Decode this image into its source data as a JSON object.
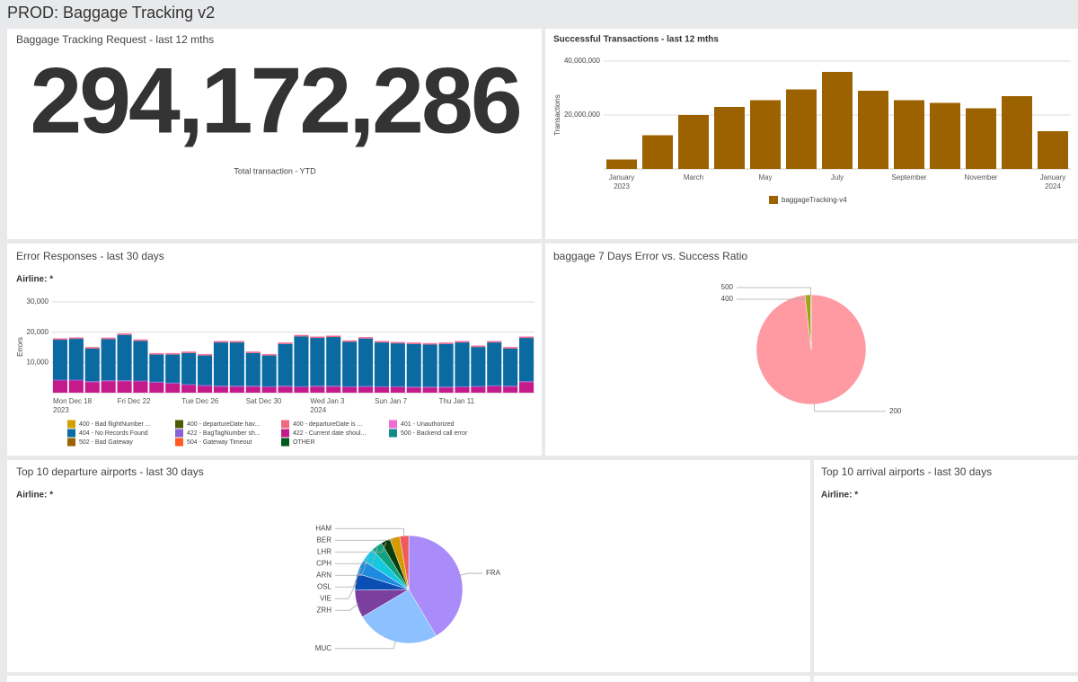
{
  "header": {
    "title": "PROD: Baggage Tracking v2"
  },
  "kpi": {
    "title": "Baggage Tracking Request - last 12 mths",
    "value": "294,172,286",
    "caption": "Total transaction - YTD"
  },
  "chart_data": [
    {
      "type": "bar",
      "title": "Successful Transactions - last 12 mths",
      "y_label": "Transactions",
      "categories": [
        "January\n2023",
        null,
        "March",
        null,
        "May",
        null,
        "July",
        null,
        "September",
        null,
        "November",
        null,
        "January\n2024"
      ],
      "series": [
        {
          "name": "baggageTracking-v4",
          "color": "#9c6200",
          "values": [
            3500000,
            12500000,
            20000000,
            23000000,
            25500000,
            29500000,
            36000000,
            29000000,
            25500000,
            24500000,
            22500000,
            27000000,
            14000000
          ]
        }
      ],
      "ylim": [
        0,
        40000000
      ],
      "yticks": [
        {
          "value": 20000000,
          "label": "20,000,000"
        },
        {
          "value": 40000000,
          "label": "40,000,000"
        }
      ],
      "grid": true
    },
    {
      "type": "stacked_bar",
      "title": "Error Responses - last 30 days",
      "filter": "Airline: *",
      "y_label": "Errors",
      "categories": [
        "Mon Dec 18\n2023",
        null,
        null,
        null,
        "Fri Dec 22",
        null,
        null,
        null,
        "Tue Dec 26",
        null,
        null,
        null,
        "Sat Dec 30",
        null,
        null,
        null,
        "Wed Jan 3\n2024",
        null,
        null,
        null,
        "Sun Jan 7",
        null,
        null,
        null,
        "Thu Jan 11",
        null,
        null,
        null,
        null,
        null
      ],
      "series": [
        {
          "name": "422 - Current date shoul...",
          "color": "#c51b8a",
          "values": [
            4000,
            4000,
            3500,
            3800,
            3800,
            3700,
            3300,
            3000,
            2500,
            2200,
            2000,
            2000,
            2000,
            1800,
            2000,
            1800,
            2000,
            2000,
            1800,
            1900,
            1800,
            1800,
            1700,
            1700,
            1700,
            1800,
            1900,
            2100,
            2000,
            3500
          ]
        },
        {
          "name": "422 - BagTagNumber sh...",
          "color": "#8c5fd6",
          "values": [
            300,
            300,
            300,
            300,
            300,
            300,
            300,
            300,
            300,
            300,
            300,
            300,
            300,
            300,
            300,
            300,
            300,
            300,
            300,
            300,
            300,
            300,
            300,
            300,
            300,
            300,
            300,
            300,
            300,
            300
          ]
        },
        {
          "name": "404 - No Records Found",
          "color": "#0a6aa1",
          "values": [
            13200,
            13500,
            10800,
            13600,
            15000,
            13100,
            9000,
            9300,
            10300,
            9800,
            14300,
            14300,
            10800,
            10200,
            13800,
            16500,
            15800,
            16100,
            14700,
            15700,
            14500,
            14200,
            14100,
            13900,
            14100,
            14500,
            12900,
            14200,
            12300,
            14300
          ]
        },
        {
          "name": "400 - departureDate is ...",
          "color": "#f06a7f",
          "values": [
            400,
            400,
            400,
            400,
            400,
            400,
            400,
            400,
            400,
            400,
            400,
            400,
            400,
            400,
            400,
            400,
            400,
            400,
            400,
            400,
            400,
            400,
            400,
            400,
            400,
            400,
            400,
            400,
            400,
            400
          ]
        },
        {
          "name": "401 - Unauthorized",
          "color": "#f06cd4",
          "values": [
            100,
            100,
            100,
            100,
            100,
            100,
            100,
            100,
            100,
            100,
            100,
            100,
            100,
            100,
            100,
            100,
            100,
            100,
            100,
            100,
            100,
            100,
            100,
            100,
            100,
            100,
            100,
            100,
            100,
            100
          ]
        },
        {
          "name": "400 - Bad flightNumber ...",
          "color": "#d4a000",
          "values": [
            0,
            0,
            0,
            0,
            0,
            0,
            0,
            0,
            0,
            0,
            0,
            0,
            0,
            0,
            0,
            0,
            0,
            0,
            0,
            0,
            0,
            0,
            0,
            0,
            0,
            0,
            0,
            0,
            0,
            0
          ]
        },
        {
          "name": "400 - departureDate hav...",
          "color": "#4d5b00",
          "values": [
            0,
            0,
            0,
            0,
            0,
            0,
            0,
            0,
            0,
            0,
            0,
            0,
            0,
            0,
            0,
            0,
            0,
            0,
            0,
            0,
            0,
            0,
            0,
            0,
            0,
            0,
            0,
            0,
            0,
            0
          ]
        },
        {
          "name": "502 - Bad Gateway",
          "color": "#9c6200",
          "values": [
            0,
            0,
            0,
            0,
            0,
            0,
            0,
            0,
            0,
            0,
            0,
            0,
            0,
            0,
            0,
            0,
            0,
            0,
            0,
            0,
            0,
            0,
            0,
            0,
            0,
            0,
            0,
            0,
            0,
            0
          ]
        },
        {
          "name": "504 - Gateway Timeout",
          "color": "#ff5a1f",
          "values": [
            0,
            0,
            0,
            0,
            0,
            0,
            0,
            0,
            0,
            0,
            0,
            0,
            0,
            0,
            0,
            0,
            0,
            0,
            0,
            0,
            0,
            0,
            0,
            0,
            0,
            0,
            0,
            0,
            0,
            0
          ]
        },
        {
          "name": "500 - Backend call error",
          "color": "#138a8a",
          "values": [
            0,
            0,
            0,
            0,
            0,
            0,
            0,
            0,
            0,
            0,
            0,
            0,
            0,
            0,
            0,
            0,
            0,
            0,
            0,
            0,
            0,
            0,
            0,
            0,
            0,
            0,
            0,
            0,
            0,
            0
          ]
        },
        {
          "name": "OTHER",
          "color": "#005a20",
          "values": [
            0,
            0,
            0,
            0,
            0,
            0,
            0,
            0,
            0,
            0,
            0,
            0,
            0,
            0,
            0,
            0,
            0,
            0,
            0,
            0,
            0,
            0,
            0,
            0,
            0,
            0,
            0,
            0,
            0,
            0
          ]
        }
      ],
      "ylim": [
        0,
        30000
      ],
      "yticks": [
        {
          "value": 10000,
          "label": "10,000"
        },
        {
          "value": 20000,
          "label": "20,000"
        },
        {
          "value": 30000,
          "label": "30,000"
        }
      ],
      "grid": true
    },
    {
      "type": "pie",
      "title": "baggage 7 Days Error vs. Success Ratio",
      "categories": [
        "200",
        "400",
        "500"
      ],
      "values": [
        98.2,
        1.6,
        0.2
      ],
      "colors": [
        "#ff9aa2",
        "#9aa40c",
        "#4b6b00"
      ]
    },
    {
      "type": "pie",
      "title": "Top 10 departure airports - last 30 days",
      "filter": "Airline: *",
      "categories": [
        "FRA",
        "MUC",
        "ZRH",
        "VIE",
        "OSL",
        "ARN",
        "CPH",
        "LHR",
        "BER",
        "HAM"
      ],
      "values": [
        41.5,
        25,
        8.3,
        5,
        4.2,
        4.2,
        3.3,
        2.8,
        3,
        2.7
      ],
      "colors": [
        "#a98bfa",
        "#8cc0ff",
        "#7b3fa0",
        "#0b4fb5",
        "#1e8be0",
        "#14c8e0",
        "#10a37f",
        "#0b3d0b",
        "#d49a00",
        "#f05a5a"
      ]
    }
  ],
  "arrivals": {
    "title": "Top 10 arrival airports - last 30 days",
    "filter": "Airline: *"
  }
}
